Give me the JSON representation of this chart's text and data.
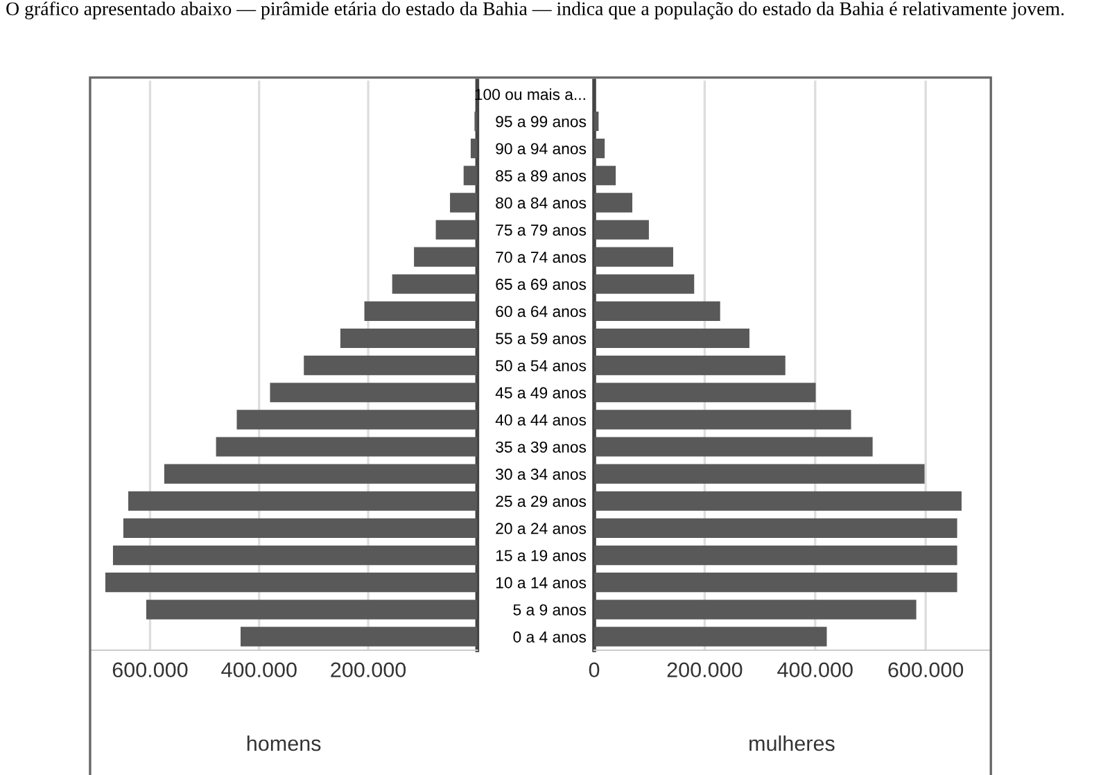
{
  "chart_data": [
    {
      "type": "bar",
      "orientation": "horizontal",
      "title": "O gráfico apresentado abaixo — pirâmide etária do estado da Bahia — indica que a população do estado da Bahia é relativamente jovem.",
      "xlabel": "homens",
      "categories": [
        null,
        null,
        null,
        null,
        null,
        null,
        null,
        null,
        null,
        null,
        null,
        null,
        null,
        null,
        null,
        null,
        null,
        null,
        null,
        null,
        null
      ],
      "values": [
        0,
        5000,
        12000,
        25000,
        50000,
        76000,
        116000,
        156000,
        207000,
        251000,
        318000,
        380000,
        441000,
        479000,
        574000,
        640000,
        649000,
        668000,
        682000,
        607000,
        434000
      ],
      "color": "#595959",
      "xlim": [
        710000,
        0
      ],
      "xticks": [
        {
          "value": 600000,
          "label": "600.000"
        },
        {
          "value": 400000,
          "label": "400.000"
        },
        {
          "value": 200000,
          "label": "200.000"
        }
      ],
      "grid": "x",
      "tick_labels": "x"
    },
    {
      "type": "bar",
      "orientation": "horizontal",
      "xlabel": "mulheres",
      "categories": [
        "100 ou mais a...",
        "95 a 99 anos",
        "90 a 94 anos",
        "85 a 89 anos",
        "80 a 84 anos",
        "75 a 79 anos",
        "70 a 74 anos",
        "65 a 69 anos",
        "60 a 64 anos",
        "55 a 59 anos",
        "50 a 54 anos",
        "45 a 49 anos",
        "40 a 44 anos",
        "35 a 39 anos",
        "30 a 34 anos",
        "25 a 29 anos",
        "20 a 24 anos",
        "15 a 19 anos",
        "10 a 14 anos",
        "5 a 9 anos",
        "0 a 4 anos"
      ],
      "values": [
        0,
        8000,
        19000,
        39000,
        69000,
        99000,
        143000,
        181000,
        228000,
        281000,
        346000,
        401000,
        465000,
        504000,
        598000,
        665000,
        657000,
        657000,
        657000,
        583000,
        421000
      ],
      "color": "#595959",
      "xlim": [
        0,
        715000
      ],
      "xticks": [
        0,
        {
          "value": 200000,
          "label": "200.000"
        },
        {
          "value": 400000,
          "label": "400.000"
        },
        {
          "value": 600000,
          "label": "600.000"
        }
      ],
      "grid": "x"
    }
  ]
}
